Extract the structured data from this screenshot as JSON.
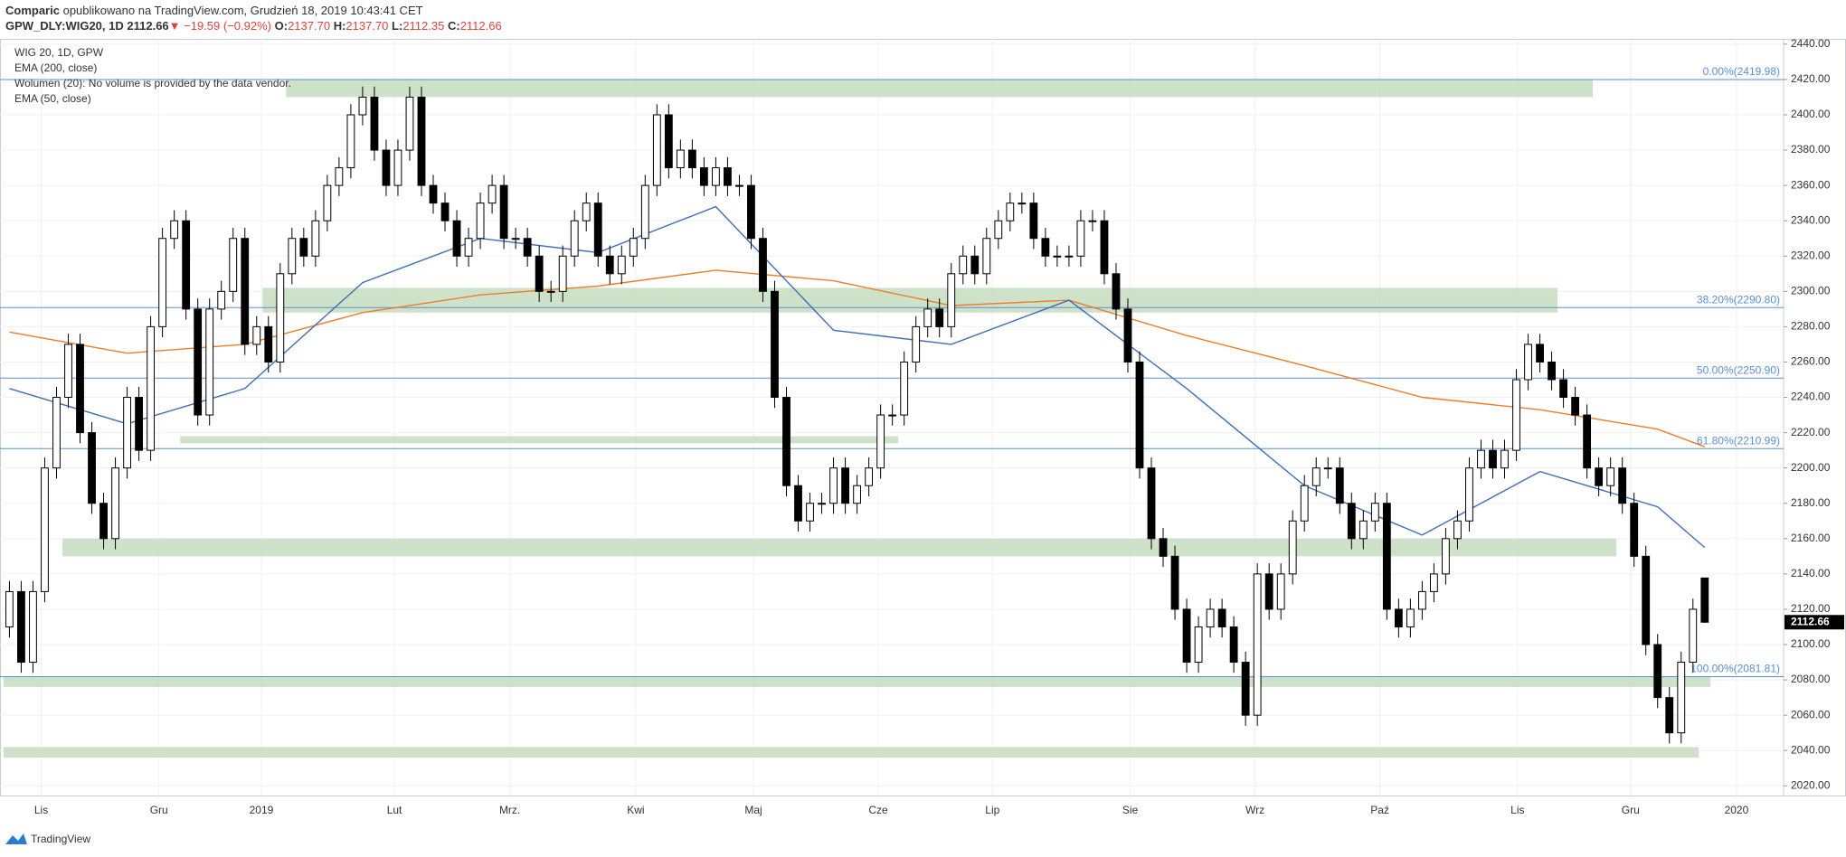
{
  "header": {
    "publisher": "Comparic",
    "published": "opublikowano na TradingView.com, Grudzień 18, 2019 10:43:41 CET",
    "symbol": "GPW_DLY:WIG20, 1D",
    "last": "2112.66",
    "change": "▼ −19.59 (−0.92%)",
    "ohlc_labels": [
      "O:",
      "H:",
      "L:",
      "C:"
    ],
    "ohlc_values": [
      "2137.70",
      "2137.70",
      "2112.35",
      "2112.66"
    ]
  },
  "legend": [
    "WIG 20, 1D, GPW",
    "EMA (200, close)",
    "Wolumen (20): No volume is provided by the data vendor.",
    "EMA (50, close)"
  ],
  "footer": "TradingView",
  "chart_data": {
    "type": "candlestick",
    "ohlc": [
      [
        2110,
        2136,
        2104,
        2130
      ],
      [
        2130,
        2136,
        2084,
        2090
      ],
      [
        2090,
        2136,
        2084,
        2130
      ],
      [
        2130,
        2206,
        2124,
        2200
      ],
      [
        2200,
        2246,
        2194,
        2240
      ],
      [
        2240,
        2276,
        2234,
        2270
      ],
      [
        2270,
        2276,
        2214,
        2220
      ],
      [
        2220,
        2226,
        2174,
        2180
      ],
      [
        2180,
        2186,
        2154,
        2160
      ],
      [
        2160,
        2206,
        2154,
        2200
      ],
      [
        2200,
        2246,
        2194,
        2240
      ],
      [
        2240,
        2246,
        2204,
        2210
      ],
      [
        2210,
        2286,
        2204,
        2280
      ],
      [
        2280,
        2336,
        2274,
        2330
      ],
      [
        2330,
        2346,
        2324,
        2340
      ],
      [
        2340,
        2346,
        2284,
        2290
      ],
      [
        2290,
        2296,
        2224,
        2230
      ],
      [
        2230,
        2296,
        2224,
        2290
      ],
      [
        2290,
        2306,
        2284,
        2300
      ],
      [
        2300,
        2336,
        2294,
        2330
      ],
      [
        2330,
        2336,
        2264,
        2270
      ],
      [
        2270,
        2286,
        2264,
        2280
      ],
      [
        2280,
        2286,
        2254,
        2260
      ],
      [
        2260,
        2316,
        2254,
        2310
      ],
      [
        2310,
        2336,
        2304,
        2330
      ],
      [
        2330,
        2336,
        2314,
        2320
      ],
      [
        2320,
        2346,
        2314,
        2340
      ],
      [
        2340,
        2366,
        2334,
        2360
      ],
      [
        2360,
        2376,
        2354,
        2370
      ],
      [
        2370,
        2406,
        2364,
        2400
      ],
      [
        2400,
        2416,
        2394,
        2410
      ],
      [
        2410,
        2416,
        2374,
        2380
      ],
      [
        2380,
        2386,
        2354,
        2360
      ],
      [
        2360,
        2386,
        2354,
        2380
      ],
      [
        2380,
        2416,
        2374,
        2410
      ],
      [
        2410,
        2416,
        2354,
        2360
      ],
      [
        2360,
        2366,
        2344,
        2350
      ],
      [
        2350,
        2356,
        2334,
        2340
      ],
      [
        2340,
        2346,
        2314,
        2320
      ],
      [
        2320,
        2336,
        2314,
        2330
      ],
      [
        2330,
        2356,
        2324,
        2350
      ],
      [
        2350,
        2366,
        2344,
        2360
      ],
      [
        2360,
        2366,
        2324,
        2330
      ],
      [
        2330,
        2336,
        2324,
        2330
      ],
      [
        2330,
        2336,
        2314,
        2320
      ],
      [
        2320,
        2326,
        2294,
        2300
      ],
      [
        2300,
        2306,
        2294,
        2300
      ],
      [
        2300,
        2326,
        2294,
        2320
      ],
      [
        2320,
        2346,
        2314,
        2340
      ],
      [
        2340,
        2356,
        2334,
        2350
      ],
      [
        2350,
        2356,
        2314,
        2320
      ],
      [
        2320,
        2326,
        2304,
        2310
      ],
      [
        2310,
        2326,
        2304,
        2320
      ],
      [
        2320,
        2336,
        2314,
        2330
      ],
      [
        2330,
        2366,
        2324,
        2360
      ],
      [
        2360,
        2406,
        2354,
        2400
      ],
      [
        2400,
        2406,
        2364,
        2370
      ],
      [
        2370,
        2386,
        2364,
        2380
      ],
      [
        2380,
        2386,
        2364,
        2370
      ],
      [
        2370,
        2376,
        2354,
        2360
      ],
      [
        2360,
        2376,
        2354,
        2370
      ],
      [
        2370,
        2376,
        2354,
        2360
      ],
      [
        2360,
        2366,
        2354,
        2360
      ],
      [
        2360,
        2366,
        2324,
        2330
      ],
      [
        2330,
        2336,
        2294,
        2300
      ],
      [
        2300,
        2306,
        2234,
        2240
      ],
      [
        2240,
        2246,
        2184,
        2190
      ],
      [
        2190,
        2196,
        2164,
        2170
      ],
      [
        2170,
        2186,
        2164,
        2180
      ],
      [
        2180,
        2186,
        2174,
        2180
      ],
      [
        2180,
        2206,
        2174,
        2200
      ],
      [
        2200,
        2206,
        2174,
        2180
      ],
      [
        2180,
        2196,
        2174,
        2190
      ],
      [
        2190,
        2206,
        2184,
        2200
      ],
      [
        2200,
        2236,
        2194,
        2230
      ],
      [
        2230,
        2236,
        2224,
        2230
      ],
      [
        2230,
        2266,
        2224,
        2260
      ],
      [
        2260,
        2286,
        2254,
        2280
      ],
      [
        2280,
        2296,
        2274,
        2290
      ],
      [
        2290,
        2296,
        2274,
        2280
      ],
      [
        2280,
        2316,
        2274,
        2310
      ],
      [
        2310,
        2326,
        2304,
        2320
      ],
      [
        2320,
        2326,
        2304,
        2310
      ],
      [
        2310,
        2336,
        2304,
        2330
      ],
      [
        2330,
        2346,
        2324,
        2340
      ],
      [
        2340,
        2356,
        2334,
        2350
      ],
      [
        2350,
        2356,
        2344,
        2350
      ],
      [
        2350,
        2356,
        2324,
        2330
      ],
      [
        2330,
        2336,
        2314,
        2320
      ],
      [
        2320,
        2326,
        2314,
        2320
      ],
      [
        2320,
        2326,
        2314,
        2320
      ],
      [
        2320,
        2346,
        2314,
        2340
      ],
      [
        2340,
        2346,
        2334,
        2340
      ],
      [
        2340,
        2346,
        2304,
        2310
      ],
      [
        2310,
        2316,
        2284,
        2290
      ],
      [
        2290,
        2296,
        2254,
        2260
      ],
      [
        2260,
        2266,
        2194,
        2200
      ],
      [
        2200,
        2206,
        2154,
        2160
      ],
      [
        2160,
        2166,
        2144,
        2150
      ],
      [
        2150,
        2156,
        2114,
        2120
      ],
      [
        2120,
        2126,
        2084,
        2090
      ],
      [
        2090,
        2116,
        2084,
        2110
      ],
      [
        2110,
        2126,
        2104,
        2120
      ],
      [
        2120,
        2126,
        2104,
        2110
      ],
      [
        2110,
        2116,
        2084,
        2090
      ],
      [
        2090,
        2096,
        2054,
        2060
      ],
      [
        2060,
        2146,
        2054,
        2140
      ],
      [
        2140,
        2146,
        2114,
        2120
      ],
      [
        2120,
        2146,
        2114,
        2140
      ],
      [
        2140,
        2176,
        2134,
        2170
      ],
      [
        2170,
        2196,
        2164,
        2190
      ],
      [
        2190,
        2206,
        2184,
        2200
      ],
      [
        2200,
        2206,
        2194,
        2200
      ],
      [
        2200,
        2206,
        2174,
        2180
      ],
      [
        2180,
        2186,
        2154,
        2160
      ],
      [
        2160,
        2176,
        2154,
        2170
      ],
      [
        2170,
        2186,
        2164,
        2180
      ],
      [
        2180,
        2186,
        2114,
        2120
      ],
      [
        2120,
        2126,
        2104,
        2110
      ],
      [
        2110,
        2126,
        2104,
        2120
      ],
      [
        2120,
        2136,
        2114,
        2130
      ],
      [
        2130,
        2146,
        2124,
        2140
      ],
      [
        2140,
        2166,
        2134,
        2160
      ],
      [
        2160,
        2176,
        2154,
        2170
      ],
      [
        2170,
        2206,
        2164,
        2200
      ],
      [
        2200,
        2216,
        2194,
        2210
      ],
      [
        2210,
        2216,
        2194,
        2200
      ],
      [
        2200,
        2216,
        2194,
        2210
      ],
      [
        2210,
        2256,
        2204,
        2250
      ],
      [
        2250,
        2276,
        2244,
        2270
      ],
      [
        2270,
        2276,
        2254,
        2260
      ],
      [
        2260,
        2266,
        2244,
        2250
      ],
      [
        2250,
        2256,
        2234,
        2240
      ],
      [
        2240,
        2246,
        2224,
        2230
      ],
      [
        2230,
        2236,
        2194,
        2200
      ],
      [
        2200,
        2206,
        2184,
        2190
      ],
      [
        2190,
        2206,
        2184,
        2200
      ],
      [
        2200,
        2206,
        2174,
        2180
      ],
      [
        2180,
        2186,
        2144,
        2150
      ],
      [
        2150,
        2156,
        2094,
        2100
      ],
      [
        2100,
        2106,
        2064,
        2070
      ],
      [
        2070,
        2076,
        2044,
        2050
      ],
      [
        2050,
        2096,
        2044,
        2090
      ],
      [
        2090,
        2126,
        2084,
        2120
      ],
      [
        2137.7,
        2137.7,
        2112.35,
        2112.66
      ]
    ],
    "up_color": "#ffffff",
    "down_color": "#000000",
    "series": [
      {
        "name": "EMA (200, close)",
        "color": "#f07c2a",
        "x": [
          0,
          10,
          20,
          30,
          40,
          50,
          60,
          70,
          80,
          90,
          100,
          110,
          120,
          130,
          140,
          144
        ],
        "values": [
          2277,
          2265,
          2270,
          2288,
          2298,
          2303,
          2312,
          2306,
          2292,
          2295,
          2275,
          2258,
          2240,
          2233,
          2222,
          2212
        ]
      },
      {
        "name": "EMA (50, close)",
        "color": "#3e6fb5",
        "x": [
          0,
          10,
          20,
          30,
          40,
          50,
          60,
          70,
          80,
          90,
          100,
          110,
          120,
          130,
          140,
          144
        ],
        "values": [
          2245,
          2225,
          2245,
          2305,
          2330,
          2322,
          2348,
          2278,
          2270,
          2295,
          2245,
          2190,
          2162,
          2198,
          2178,
          2155
        ]
      }
    ],
    "zones": [
      {
        "x": [
          24,
          134
        ],
        "y": [
          2410,
          2420
        ]
      },
      {
        "x": [
          22,
          131
        ],
        "y": [
          2288,
          2302
        ]
      },
      {
        "x": [
          15,
          75
        ],
        "y": [
          2214,
          2218
        ]
      },
      {
        "x": [
          5,
          136
        ],
        "y": [
          2150,
          2160
        ]
      },
      {
        "x": [
          0,
          144
        ],
        "y": [
          2076,
          2082
        ]
      },
      {
        "x": [
          0,
          143
        ],
        "y": [
          2036,
          2042
        ]
      }
    ],
    "zone_color": "#c6dcc0",
    "fib_levels": [
      {
        "value": 2419.98,
        "label": "0.00%(2419.98)"
      },
      {
        "value": 2290.8,
        "label": "38.20%(2290.80)"
      },
      {
        "value": 2250.9,
        "label": "50.00%(2250.90)"
      },
      {
        "value": 2210.99,
        "label": "61.80%(2210.99)"
      },
      {
        "value": 2081.81,
        "label": "100.00%(2081.81)"
      }
    ],
    "fib_color": "#5b8fd0",
    "last_price": {
      "value": 2112.66,
      "label": "2112.66"
    },
    "xlim": [
      -0.8,
      150.7
    ],
    "xticks": [
      {
        "value": 2.7,
        "label": "Lis"
      },
      {
        "value": 12.7,
        "label": "Gru"
      },
      {
        "value": 21.4,
        "label": "2019"
      },
      {
        "value": 32.7,
        "label": "Lut"
      },
      {
        "value": 42.5,
        "label": "Mrz."
      },
      {
        "value": 53.2,
        "label": "Kwi"
      },
      {
        "value": 63.2,
        "label": "Maj"
      },
      {
        "value": 73.8,
        "label": "Cze"
      },
      {
        "value": 83.5,
        "label": "Lip"
      },
      {
        "value": 95.2,
        "label": "Sie"
      },
      {
        "value": 105.8,
        "label": "Wrz"
      },
      {
        "value": 116.4,
        "label": "Paź"
      },
      {
        "value": 128.1,
        "label": "Lis"
      },
      {
        "value": 137.7,
        "label": "Gru"
      },
      {
        "value": 146.7,
        "label": "2020"
      }
    ],
    "ylim": [
      2014,
      2443
    ],
    "yticks": [
      {
        "value": 2020,
        "label": "2020.00"
      },
      {
        "value": 2040,
        "label": "2040.00"
      },
      {
        "value": 2060,
        "label": "2060.00"
      },
      {
        "value": 2080,
        "label": "2080.00"
      },
      {
        "value": 2100,
        "label": "2100.00"
      },
      {
        "value": 2120,
        "label": "2120.00"
      },
      {
        "value": 2140,
        "label": "2140.00"
      },
      {
        "value": 2160,
        "label": "2160.00"
      },
      {
        "value": 2180,
        "label": "2180.00"
      },
      {
        "value": 2200,
        "label": "2200.00"
      },
      {
        "value": 2220,
        "label": "2220.00"
      },
      {
        "value": 2240,
        "label": "2240.00"
      },
      {
        "value": 2260,
        "label": "2260.00"
      },
      {
        "value": 2280,
        "label": "2280.00"
      },
      {
        "value": 2300,
        "label": "2300.00"
      },
      {
        "value": 2320,
        "label": "2320.00"
      },
      {
        "value": 2340,
        "label": "2340.00"
      },
      {
        "value": 2360,
        "label": "2360.00"
      },
      {
        "value": 2380,
        "label": "2380.00"
      },
      {
        "value": 2400,
        "label": "2400.00"
      },
      {
        "value": 2420,
        "label": "2420.00"
      },
      {
        "value": 2440,
        "label": "2440.00"
      }
    ],
    "grid": true
  }
}
